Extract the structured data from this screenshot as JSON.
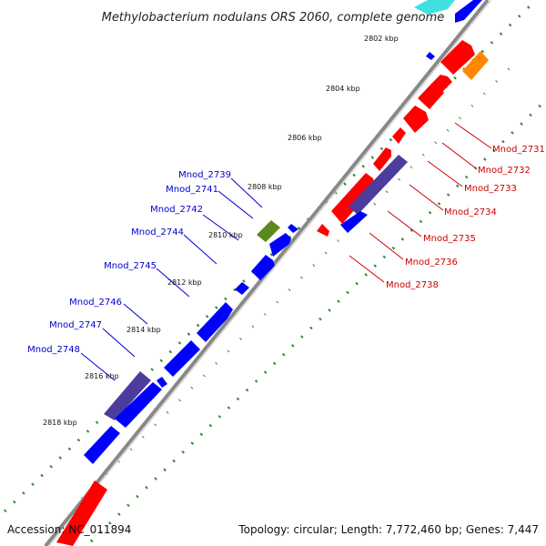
{
  "title": "Methylobacterium nodulans ORS 2060, complete genome",
  "footer": {
    "accession": "Accession: NC_011894",
    "topology": "Topology: circular; Length: 7,772,460 bp; Genes: 7,447"
  },
  "ticks": [
    "2802 kbp",
    "2804 kbp",
    "2806 kbp",
    "2808 kbp",
    "2810 kbp",
    "2812 kbp",
    "2814 kbp",
    "2816 kbp",
    "2818 kbp"
  ],
  "gene_labels_left": [
    "Mnod_2739",
    "Mnod_2741",
    "Mnod_2742",
    "Mnod_2744",
    "Mnod_2745",
    "Mnod_2746",
    "Mnod_2747",
    "Mnod_2748"
  ],
  "gene_labels_right": [
    "Mnod_2731",
    "Mnod_2732",
    "Mnod_2733",
    "Mnod_2734",
    "Mnod_2735",
    "Mnod_2736",
    "Mnod_2738"
  ],
  "colors": {
    "forward_gene": "#ff0000",
    "reverse_gene": "#0000ff",
    "dark_gene": "#4b3c9e",
    "orange_gene": "#ff8800",
    "olive_gene": "#5a8a1e",
    "cyan_gene": "#40e0e0",
    "backbone": "#888888",
    "tick_dots": "#2e8b2e",
    "left_label": "#0000cc",
    "right_label": "#cc0000"
  }
}
